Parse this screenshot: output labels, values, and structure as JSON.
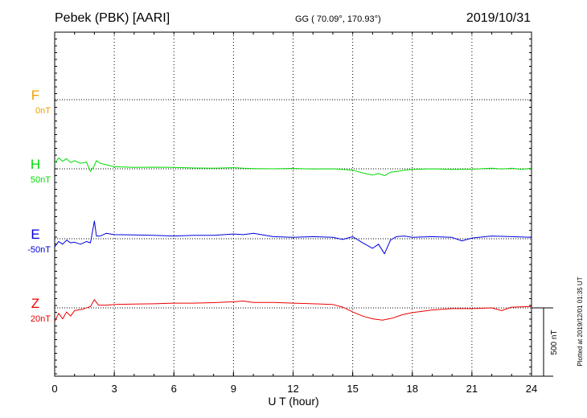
{
  "header": {
    "station": "Pebek (PBK)  [AARI]",
    "coords": "GG ( 70.09°, 170.93°)",
    "date": "2019/10/31"
  },
  "footer": {
    "plotted_at": "Plotted at 2019/12/01 01:35 UT"
  },
  "chart_data": {
    "type": "line",
    "xlabel": "U T (hour)",
    "xlim": [
      0,
      24
    ],
    "xticks": [
      "0",
      "3",
      "6",
      "9",
      "12",
      "15",
      "18",
      "21",
      "24"
    ],
    "scale_bar": {
      "label": "500 nT",
      "value_nT": 500
    },
    "grid": true,
    "series": [
      {
        "name": "F",
        "baseline": "0nT",
        "color": "#f0a000",
        "x": [],
        "y": []
      },
      {
        "name": "H",
        "baseline": "50nT",
        "color": "#00dd00",
        "x": [
          0,
          0.2,
          0.4,
          0.6,
          0.8,
          1.0,
          1.3,
          1.6,
          1.8,
          2.0,
          2.1,
          2.3,
          2.6,
          3.0,
          4.0,
          5.0,
          6.0,
          7.0,
          8.0,
          9.0,
          9.5,
          10.0,
          11.0,
          12.0,
          13.0,
          14.0,
          14.5,
          15.0,
          15.5,
          16.0,
          16.3,
          16.6,
          16.9,
          17.2,
          17.6,
          18.0,
          19.0,
          20.0,
          21.0,
          22.0,
          22.5,
          23.0,
          23.5,
          24.0
        ],
        "y": [
          40,
          80,
          55,
          75,
          45,
          60,
          40,
          50,
          -20,
          25,
          60,
          40,
          30,
          15,
          10,
          12,
          10,
          6,
          5,
          8,
          4,
          2,
          0,
          3,
          -2,
          0,
          -5,
          -10,
          -30,
          -45,
          -35,
          -50,
          -25,
          -20,
          -10,
          -5,
          0,
          -5,
          -3,
          5,
          -2,
          4,
          -5,
          5
        ]
      },
      {
        "name": "E",
        "baseline": "-50nT",
        "color": "#0000dd",
        "x": [
          0,
          0.2,
          0.4,
          0.6,
          0.8,
          1.0,
          1.3,
          1.6,
          1.8,
          2.0,
          2.1,
          2.3,
          2.6,
          3.0,
          4.0,
          5.0,
          6.0,
          7.0,
          8.0,
          9.0,
          9.5,
          10.0,
          11.0,
          12.0,
          13.0,
          14.0,
          14.5,
          15.0,
          15.5,
          16.0,
          16.3,
          16.6,
          16.9,
          17.2,
          17.6,
          18.0,
          19.0,
          20.0,
          20.5,
          21.0,
          22.0,
          23.0,
          24.0
        ],
        "y": [
          -60,
          -20,
          -40,
          -10,
          -30,
          -25,
          -40,
          -20,
          -30,
          130,
          20,
          20,
          40,
          30,
          28,
          25,
          20,
          25,
          25,
          35,
          30,
          40,
          15,
          10,
          15,
          10,
          -5,
          15,
          -30,
          -70,
          -40,
          -110,
          -10,
          15,
          20,
          10,
          15,
          10,
          -15,
          5,
          20,
          15,
          10
        ]
      },
      {
        "name": "Z",
        "baseline": "20nT",
        "color": "#ee0000",
        "x": [
          0,
          0.2,
          0.4,
          0.6,
          0.8,
          1.0,
          1.4,
          1.8,
          2.0,
          2.2,
          2.6,
          3.0,
          4.0,
          5.0,
          6.0,
          7.0,
          8.0,
          9.0,
          9.5,
          10.0,
          11.0,
          12.0,
          13.0,
          14.0,
          14.5,
          15.0,
          15.5,
          16.0,
          16.5,
          17.0,
          17.5,
          18.0,
          19.0,
          20.0,
          21.0,
          22.0,
          22.5,
          23.0,
          24.0
        ],
        "y": [
          -100,
          -40,
          -80,
          -30,
          -60,
          -20,
          -10,
          10,
          60,
          20,
          20,
          25,
          28,
          30,
          35,
          35,
          38,
          45,
          50,
          40,
          40,
          35,
          30,
          25,
          5,
          -30,
          -60,
          -80,
          -90,
          -75,
          -50,
          -35,
          -15,
          -5,
          -5,
          0,
          -20,
          5,
          10
        ]
      }
    ]
  }
}
